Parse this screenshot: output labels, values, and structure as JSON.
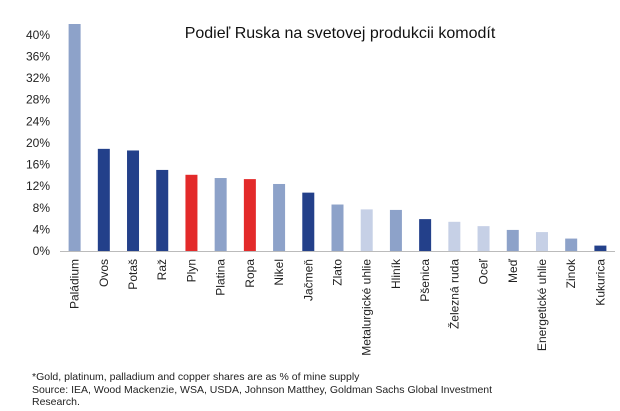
{
  "chart_data": {
    "type": "bar",
    "title": "Podieľ Ruska na svetovej produkcii komodít",
    "xlabel": "",
    "ylabel": "",
    "ylim": [
      0,
      42
    ],
    "yticks": [
      "0%",
      "4%",
      "8%",
      "12%",
      "16%",
      "20%",
      "24%",
      "28%",
      "32%",
      "36%",
      "40%"
    ],
    "ytick_values": [
      0,
      4,
      8,
      12,
      16,
      20,
      24,
      28,
      32,
      36,
      40
    ],
    "grid": false,
    "categories": [
      "Paládium",
      "Ovos",
      "Potaš",
      "Raž",
      "Plyn",
      "Platina",
      "Ropa",
      "Nikel",
      "Jačmeň",
      "Zlato",
      "Metalurgické uhlie",
      "Hliník",
      "Pšenica",
      "Železná ruda",
      "Oceľ",
      "Meď",
      "Energetické uhlie",
      "Zinok",
      "Kukurica"
    ],
    "values": [
      42,
      18.9,
      18.6,
      15.0,
      14.1,
      13.5,
      13.3,
      12.4,
      10.8,
      8.6,
      7.7,
      7.6,
      5.9,
      5.4,
      4.6,
      3.9,
      3.5,
      2.3,
      1.0
    ],
    "colors": [
      "#8da2c9",
      "#23408a",
      "#23408a",
      "#23408a",
      "#e32a2a",
      "#8da2c9",
      "#e32a2a",
      "#8da2c9",
      "#23408a",
      "#8da2c9",
      "#c6d0e6",
      "#8da2c9",
      "#23408a",
      "#c6d0e6",
      "#c6d0e6",
      "#8da2c9",
      "#c6d0e6",
      "#8da2c9",
      "#23408a"
    ]
  },
  "notes": {
    "footnote": "*Gold, platinum, palladium and copper shares are as % of mine supply",
    "source_line1": "Source: IEA, Wood Mackenzie, WSA, USDA, Johnson Matthey, Goldman Sachs Global Investment",
    "source_line2": "Research."
  }
}
